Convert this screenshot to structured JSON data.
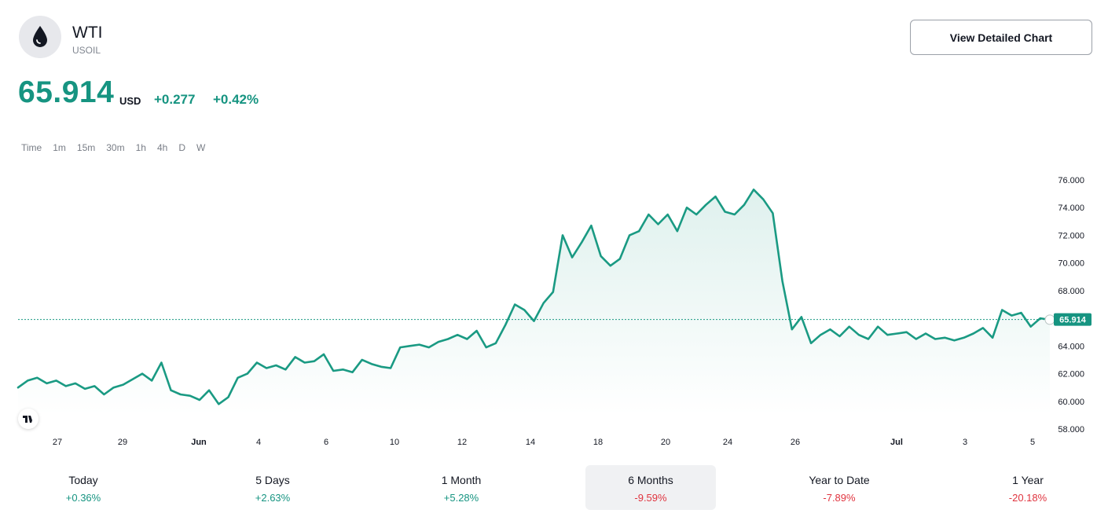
{
  "instrument": {
    "name": "WTI",
    "ticker": "USOIL",
    "icon": "oil-drop-icon",
    "price": "65.914",
    "currency": "USD",
    "change_abs": "+0.277",
    "change_pct": "+0.42%"
  },
  "header": {
    "detail_button_label": "View Detailed Chart"
  },
  "intervals": [
    "Time",
    "1m",
    "15m",
    "30m",
    "1h",
    "4h",
    "D",
    "W"
  ],
  "colors": {
    "up": "#169481",
    "down": "#e0343f",
    "line": "#1a9a83"
  },
  "periods": [
    {
      "label": "Today",
      "value": "+0.36%",
      "direction": "up"
    },
    {
      "label": "5 Days",
      "value": "+2.63%",
      "direction": "up"
    },
    {
      "label": "1 Month",
      "value": "+5.28%",
      "direction": "up"
    },
    {
      "label": "6 Months",
      "value": "-9.59%",
      "direction": "down",
      "selected": true
    },
    {
      "label": "Year to Date",
      "value": "-7.89%",
      "direction": "down"
    },
    {
      "label": "1 Year",
      "value": "-20.18%",
      "direction": "down"
    }
  ],
  "chart_data": {
    "type": "area",
    "ylim": [
      57.5,
      76.5
    ],
    "y_ticks": [
      "58.000",
      "60.000",
      "62.000",
      "64.000",
      "66.000",
      "68.000",
      "70.000",
      "72.000",
      "74.000",
      "76.000"
    ],
    "x_ticks": [
      "27",
      "29",
      "Jun",
      "4",
      "6",
      "10",
      "12",
      "14",
      "18",
      "20",
      "24",
      "26",
      "Jul",
      "3",
      "5"
    ],
    "last_price_label": "65.914",
    "last_price": 65.914,
    "series": [
      {
        "values": [
          61.0,
          61.5,
          61.7,
          61.3,
          61.5,
          61.1,
          61.3,
          60.9,
          61.1,
          60.5,
          61.0,
          61.2,
          61.6,
          62.0,
          61.5,
          62.8,
          60.8,
          60.5,
          60.4,
          60.1,
          60.8,
          59.8,
          60.3,
          61.7,
          62.0,
          62.8,
          62.4,
          62.6,
          62.3,
          63.2,
          62.8,
          62.9,
          63.4,
          62.2,
          62.3,
          62.1,
          63.0,
          62.7,
          62.5,
          62.4,
          63.9,
          64.0,
          64.1,
          63.9,
          64.3,
          64.5,
          64.8,
          64.5,
          65.1,
          63.9,
          64.2,
          65.5,
          67.0,
          66.6,
          65.8,
          67.1,
          67.9,
          72.0,
          70.4,
          71.5,
          72.7,
          70.5,
          69.8,
          70.3,
          72.0,
          72.3,
          73.5,
          72.8,
          73.5,
          72.3,
          74.0,
          73.5,
          74.2,
          74.8,
          73.7,
          73.5,
          74.2,
          75.3,
          74.6,
          73.6,
          68.7,
          65.2,
          66.1,
          64.2,
          64.8,
          65.2,
          64.7,
          65.4,
          64.8,
          64.5,
          65.4,
          64.8,
          64.9,
          65.0,
          64.5,
          64.9,
          64.5,
          64.6,
          64.4,
          64.6,
          64.9,
          65.3,
          64.6,
          66.6,
          66.2,
          66.4,
          65.4,
          66.0,
          65.9
        ]
      }
    ]
  }
}
